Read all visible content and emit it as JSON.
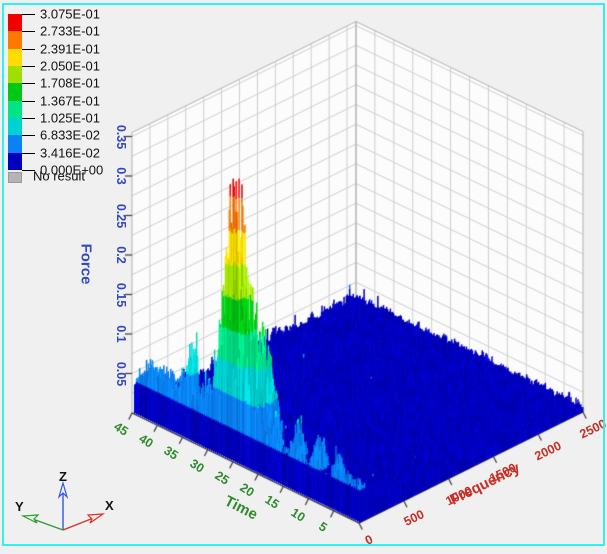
{
  "window": {
    "background": "#f0f0f0",
    "focus_border_color": "#2ef2f2"
  },
  "legend": {
    "levels": [
      "3.075E-01",
      "2.733E-01",
      "2.391E-01",
      "2.050E-01",
      "1.708E-01",
      "1.367E-01",
      "1.025E-01",
      "6.833E-02",
      "3.416E-02",
      "0.000E+00"
    ],
    "no_result_label": "No result",
    "no_result_color": "#b4b4b4"
  },
  "axes": {
    "force": {
      "title": "Force",
      "color": "#3347c2",
      "ticks": [
        "0.05",
        "0.1",
        "0.15",
        "0.2",
        "0.25",
        "0.3",
        "0.35"
      ],
      "min": 0,
      "max": 0.35
    },
    "time": {
      "title": "Time",
      "color": "#2e8b2e",
      "ticks": [
        "45",
        "40",
        "35",
        "30",
        "25",
        "20",
        "15",
        "10",
        "5"
      ],
      "min": 0,
      "max": 45
    },
    "frequency": {
      "title": "Frequency",
      "color": "#c62f26",
      "ticks": [
        "0",
        "500",
        "1000",
        "1500",
        "2000",
        "2500"
      ],
      "min": 0,
      "max": 2500
    }
  },
  "triad": {
    "x_label": "X",
    "y_label": "Y",
    "z_label": "Z",
    "x_color": "#d93025",
    "y_color": "#2e9b2e",
    "z_color": "#3355e8"
  },
  "chart_data": {
    "type": "3d_surface_waterfall",
    "description": "3D spectrogram-style surface of Force vs Time and Frequency. Mostly flat low-amplitude noise floor (dark blue) with an elevated ridge at low frequency (<~250 Hz) across all times, and a dominant spike cluster near time 24-28 at low frequency reaching the fringe maximum.",
    "xlabel": "Frequency",
    "ylabel": "Time",
    "zlabel": "Force",
    "x_range": [
      0,
      2500
    ],
    "y_range": [
      0,
      45
    ],
    "z_range": [
      0,
      0.35
    ],
    "grid": true,
    "legend_position": "top-left",
    "fringe_levels": [
      0.0,
      0.03416,
      0.06833,
      0.1025,
      0.1367,
      0.1708,
      0.205,
      0.2391,
      0.2733,
      0.3075
    ],
    "palette_bottom_to_top": [
      "#0000be",
      "#0a82f5",
      "#00d2d2",
      "#00e387",
      "#00c814",
      "#a0e000",
      "#ffdc00",
      "#ff7800",
      "#f00000"
    ],
    "noise_floor_force": 0.012,
    "low_frequency_ridge": {
      "frequency_extent": 250,
      "typical_force": 0.045
    },
    "peaks": [
      {
        "time": 26.5,
        "frequency": 80,
        "force": 0.3075,
        "time_sigma": 1.9,
        "freq_sigma": 95
      },
      {
        "time": 24.5,
        "frequency": 130,
        "force": 0.15,
        "time_sigma": 2.2,
        "freq_sigma": 150
      },
      {
        "time": 21.5,
        "frequency": 150,
        "force": 0.12,
        "time_sigma": 2.0,
        "freq_sigma": 140
      },
      {
        "time": 34.0,
        "frequency": 55,
        "force": 0.115,
        "time_sigma": 0.9,
        "freq_sigma": 60
      },
      {
        "time": 31.0,
        "frequency": 45,
        "force": 0.05,
        "time_sigma": 0.9,
        "freq_sigma": 50
      },
      {
        "time": 29.0,
        "frequency": 60,
        "force": 0.08,
        "time_sigma": 0.8,
        "freq_sigma": 60
      },
      {
        "time": 40.0,
        "frequency": 140,
        "force": 0.03,
        "time_sigma": 4.5,
        "freq_sigma": 200
      },
      {
        "time": 13.0,
        "frequency": 70,
        "force": 0.055,
        "time_sigma": 0.8,
        "freq_sigma": 60
      },
      {
        "time": 8.5,
        "frequency": 60,
        "force": 0.05,
        "time_sigma": 0.7,
        "freq_sigma": 55
      },
      {
        "time": 17.0,
        "frequency": 45,
        "force": 0.05,
        "time_sigma": 0.6,
        "freq_sigma": 50
      },
      {
        "time": 5.0,
        "frequency": 60,
        "force": 0.045,
        "time_sigma": 0.5,
        "freq_sigma": 50
      }
    ]
  }
}
